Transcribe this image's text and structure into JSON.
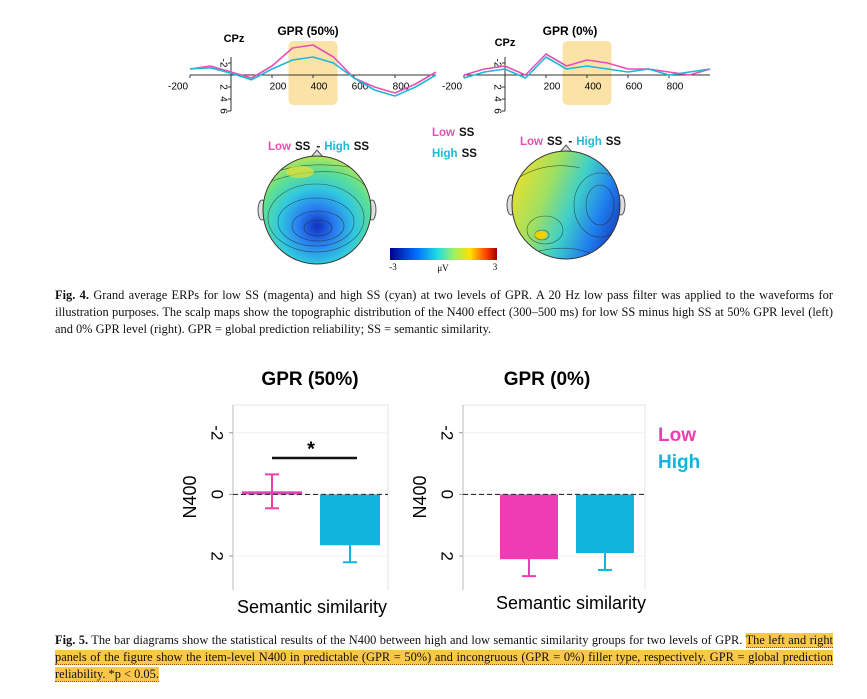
{
  "figure4": {
    "label": "Fig. 4.",
    "caption": "Grand average ERPs for low SS (magenta) and high SS (cyan) at two levels of GPR. A 20 Hz low pass filter was applied to the waveforms for illustration purposes. The scalp maps show the topographic distribution of the N400 effect (300–500 ms) for low SS minus high SS at 50% GPR level (left) and 0% GPR level (right). GPR = global prediction reliability; SS = semantic similarity.",
    "panels": [
      {
        "type": "line",
        "title": "GPR (50%)",
        "channel": "CPz",
        "x": [
          -200,
          -100,
          0,
          100,
          200,
          300,
          400,
          500,
          600,
          700,
          800,
          900,
          1000
        ],
        "series": [
          {
            "color": "#e64fb4",
            "values": [
              -1,
              -1.5,
              -0.5,
              0.5,
              -1.5,
              -4.5,
              -5,
              -3,
              0.5,
              2,
              3,
              1.5,
              -0.5
            ]
          },
          {
            "color": "#1fb8d8",
            "values": [
              -1,
              -1.2,
              -0.3,
              0.8,
              -1,
              -2.5,
              -3,
              -2,
              0.5,
              2.5,
              3.5,
              2,
              0
            ]
          }
        ],
        "xlim": [
          -200,
          1000
        ],
        "xticks": [
          -200,
          200,
          400,
          600,
          800
        ],
        "ylim": [
          -6,
          6
        ],
        "yticks": [
          -2,
          2,
          4,
          6
        ],
        "inverted": true,
        "highlight": [
          300,
          500
        ],
        "highlight_color": "#fbe3a8"
      },
      {
        "type": "line",
        "title": "GPR (0%)",
        "channel": "CPz",
        "x": [
          -200,
          -100,
          0,
          100,
          200,
          300,
          400,
          500,
          600,
          700,
          800,
          900,
          1000
        ],
        "series": [
          {
            "color": "#e64fb4",
            "values": [
              0,
              -1,
              -1.5,
              0,
              -3.5,
              -1.5,
              -2.5,
              -2,
              -1,
              -1,
              -0.5,
              0,
              -1
            ]
          },
          {
            "color": "#1fb8d8",
            "values": [
              0.5,
              -0.5,
              -1,
              0.5,
              -3,
              -1,
              -1.5,
              -1,
              -0.5,
              -1,
              0,
              -0.5,
              -1
            ]
          }
        ],
        "xlim": [
          -200,
          1000
        ],
        "xticks": [
          -200,
          200,
          400,
          600,
          800
        ],
        "ylim": [
          -6,
          6
        ],
        "yticks": [
          -2,
          2,
          4,
          6
        ],
        "inverted": true,
        "highlight": [
          300,
          500
        ],
        "highlight_color": "#fbe3a8"
      }
    ],
    "legend": {
      "low": "Low",
      "high": "High",
      "ss": "SS",
      "sep": "-",
      "low_color": "#e64fb4",
      "high_color": "#1fb8d8"
    },
    "colorbar": {
      "lim": [
        -3,
        3
      ],
      "ticks": [
        -3,
        3
      ],
      "unit": "μV"
    }
  },
  "figure5": {
    "label": "Fig. 5.",
    "caption": "The bar diagrams show the statistical results of the N400 between high and low semantic similarity groups for two levels of GPR.",
    "caption_highlighted": "The left and right panels of the figure show the item-level N400 in predictable (GPR = 50%) and incongruous (GPR = 0%) filler type, respectively. GPR = global prediction reliability. *p < 0.05.",
    "legend": [
      {
        "name": "Low",
        "color": "#f03cb4"
      },
      {
        "name": "High",
        "color": "#10b4dc"
      }
    ],
    "panels": [
      {
        "type": "bar",
        "title": "GPR (50%)",
        "ylabel": "N400",
        "xlabel": "Semantic similarity",
        "values": [
          -0.1,
          1.65
        ],
        "errors": [
          0.55,
          0.55
        ],
        "ylim": [
          -2.9,
          3.1
        ],
        "yticks": [
          -2,
          0,
          2
        ],
        "inverted": true,
        "significance": "*"
      },
      {
        "type": "bar",
        "title": "GPR (0%)",
        "ylabel": "N400",
        "xlabel": "Semantic similarity",
        "values": [
          2.1,
          1.9
        ],
        "errors": [
          0.55,
          0.55
        ],
        "ylim": [
          -2.9,
          3.1
        ],
        "yticks": [
          -2,
          0,
          2
        ],
        "inverted": true
      }
    ]
  }
}
